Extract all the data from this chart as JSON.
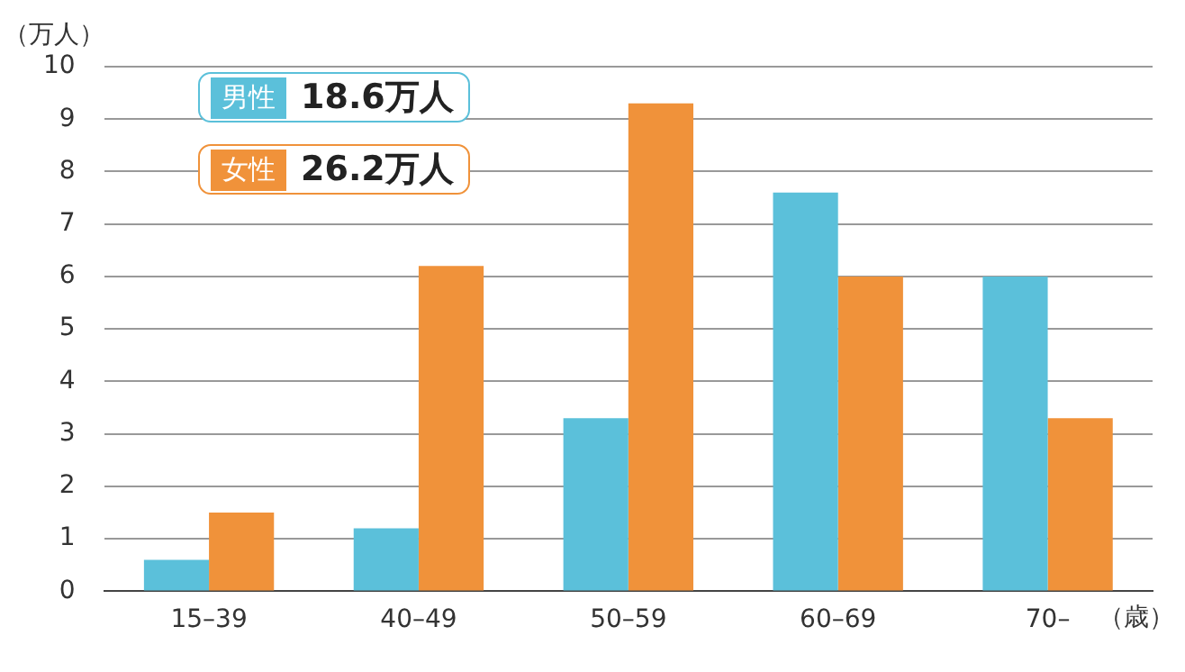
{
  "chart_data": {
    "type": "bar",
    "ylabel": "（万人）",
    "xlabel": "（歳）",
    "categories": [
      "15–39",
      "40–49",
      "50–59",
      "60–69",
      "70–"
    ],
    "series": [
      {
        "name": "男性",
        "color": "#5bc0da",
        "values": [
          0.6,
          1.2,
          3.3,
          7.6,
          6.0
        ]
      },
      {
        "name": "女性",
        "color": "#f0923a",
        "values": [
          1.5,
          6.2,
          9.3,
          6.0,
          3.3
        ]
      }
    ],
    "annotations": [
      "18.6万人",
      "26.2万人"
    ],
    "ylim": [
      0,
      10
    ],
    "yticks": [
      0,
      1,
      2,
      3,
      4,
      5,
      6,
      7,
      8,
      9,
      10
    ],
    "grid": "y",
    "legend": "top left"
  }
}
